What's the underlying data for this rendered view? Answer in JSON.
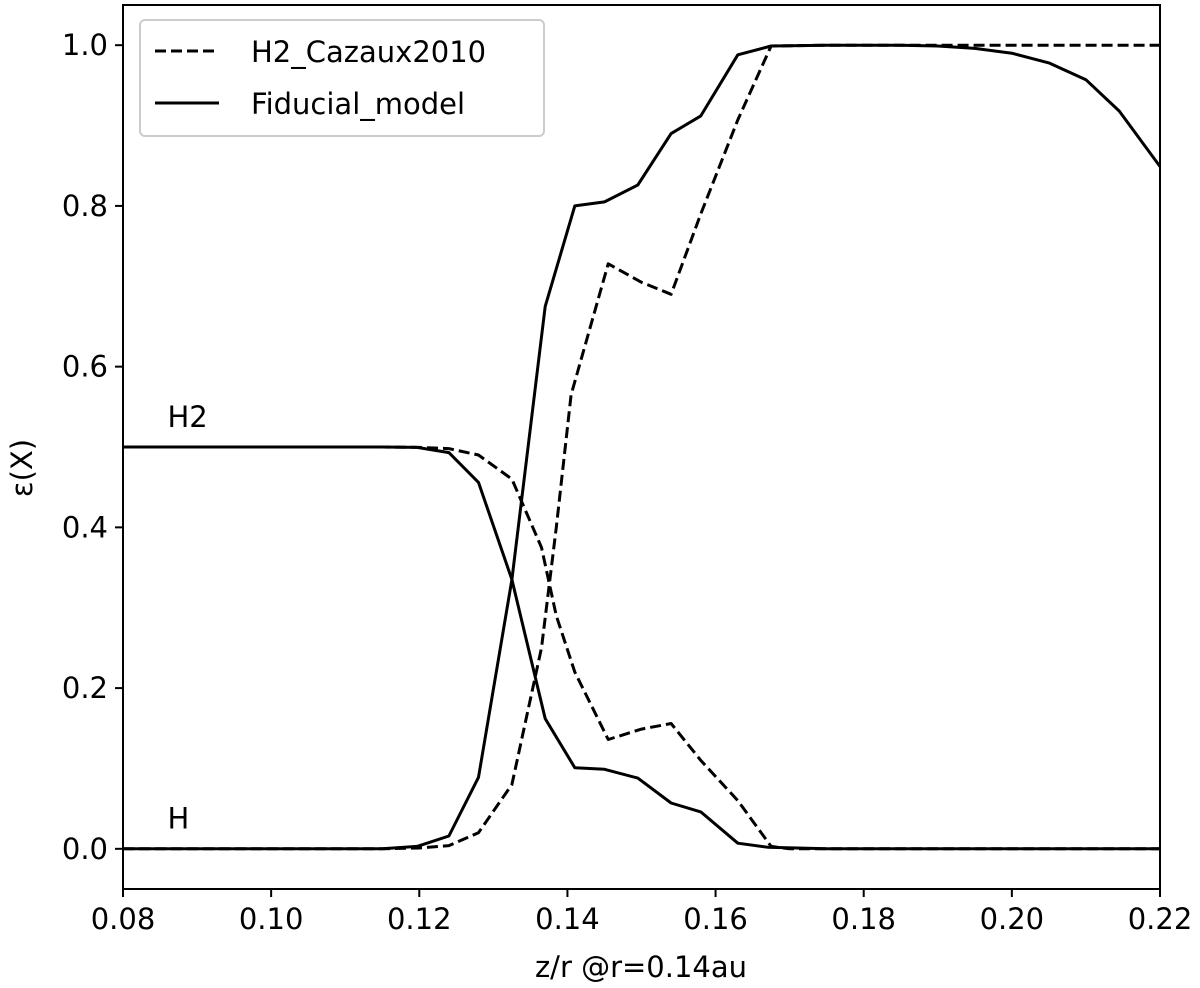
{
  "chart_data": {
    "type": "line",
    "xlabel": "z/r @r=0.14au",
    "ylabel": "ε(X)",
    "xlim": [
      0.08,
      0.22
    ],
    "ylim": [
      -0.05,
      1.05
    ],
    "xticks": [
      "0.08",
      "0.10",
      "0.12",
      "0.14",
      "0.16",
      "0.18",
      "0.20",
      "0.22"
    ],
    "yticks": [
      "0.0",
      "0.2",
      "0.4",
      "0.6",
      "0.8",
      "1.0"
    ],
    "grid": false,
    "legend": {
      "position": "top-left",
      "entries": [
        {
          "label": "H2_Cazaux2010",
          "style": "dashed"
        },
        {
          "label": "Fiducial_model",
          "style": "solid"
        }
      ]
    },
    "annotations": [
      {
        "text": "H2",
        "x": 0.086,
        "y": 0.525
      },
      {
        "text": "H",
        "x": 0.086,
        "y": 0.025
      }
    ],
    "series": [
      {
        "name": "Fiducial_model",
        "style": "solid",
        "points": [
          [
            0.08,
            0.5
          ],
          [
            0.1,
            0.5
          ],
          [
            0.115,
            0.5
          ],
          [
            0.1197,
            0.4995
          ],
          [
            0.124,
            0.493
          ],
          [
            0.128,
            0.456
          ],
          [
            0.1325,
            0.335
          ],
          [
            0.137,
            0.162
          ],
          [
            0.141,
            0.101
          ],
          [
            0.145,
            0.099
          ],
          [
            0.1495,
            0.088
          ],
          [
            0.154,
            0.057
          ],
          [
            0.158,
            0.046
          ],
          [
            0.163,
            0.007
          ],
          [
            0.167,
            0.002
          ],
          [
            0.175,
            0.0
          ],
          [
            0.22,
            0.0
          ]
        ]
      },
      {
        "name": "Fiducial_model",
        "style": "solid",
        "points": [
          [
            0.08,
            0.0
          ],
          [
            0.115,
            0.0
          ],
          [
            0.1197,
            0.003
          ],
          [
            0.124,
            0.016
          ],
          [
            0.128,
            0.089
          ],
          [
            0.1325,
            0.335
          ],
          [
            0.137,
            0.675
          ],
          [
            0.141,
            0.8
          ],
          [
            0.145,
            0.805
          ],
          [
            0.1495,
            0.826
          ],
          [
            0.154,
            0.89
          ],
          [
            0.158,
            0.912
          ],
          [
            0.163,
            0.988
          ],
          [
            0.1675,
            0.999
          ],
          [
            0.175,
            1.0
          ],
          [
            0.185,
            1.0
          ],
          [
            0.19,
            0.999
          ],
          [
            0.195,
            0.996
          ],
          [
            0.2,
            0.99
          ],
          [
            0.205,
            0.978
          ],
          [
            0.21,
            0.957
          ],
          [
            0.2145,
            0.918
          ],
          [
            0.22,
            0.849
          ]
        ]
      },
      {
        "name": "H2_Cazaux2010",
        "style": "dashed",
        "points": [
          [
            0.08,
            0.5
          ],
          [
            0.115,
            0.5
          ],
          [
            0.12,
            0.4995
          ],
          [
            0.124,
            0.498
          ],
          [
            0.128,
            0.49
          ],
          [
            0.1325,
            0.46
          ],
          [
            0.1365,
            0.375
          ],
          [
            0.1385,
            0.29
          ],
          [
            0.141,
            0.22
          ],
          [
            0.1455,
            0.136
          ],
          [
            0.15,
            0.149
          ],
          [
            0.154,
            0.156
          ],
          [
            0.158,
            0.11
          ],
          [
            0.163,
            0.06
          ],
          [
            0.1675,
            0.003
          ],
          [
            0.17,
            0.0
          ],
          [
            0.22,
            0.0
          ]
        ]
      },
      {
        "name": "H2_Cazaux2010",
        "style": "dashed",
        "points": [
          [
            0.08,
            0.0
          ],
          [
            0.115,
            0.0
          ],
          [
            0.12,
            0.001
          ],
          [
            0.124,
            0.004
          ],
          [
            0.128,
            0.02
          ],
          [
            0.1325,
            0.08
          ],
          [
            0.1365,
            0.25
          ],
          [
            0.1385,
            0.4
          ],
          [
            0.1405,
            0.565
          ],
          [
            0.1455,
            0.728
          ],
          [
            0.15,
            0.705
          ],
          [
            0.154,
            0.69
          ],
          [
            0.158,
            0.79
          ],
          [
            0.163,
            0.907
          ],
          [
            0.1675,
            0.999
          ],
          [
            0.175,
            1.0
          ],
          [
            0.22,
            1.0
          ]
        ]
      }
    ]
  }
}
